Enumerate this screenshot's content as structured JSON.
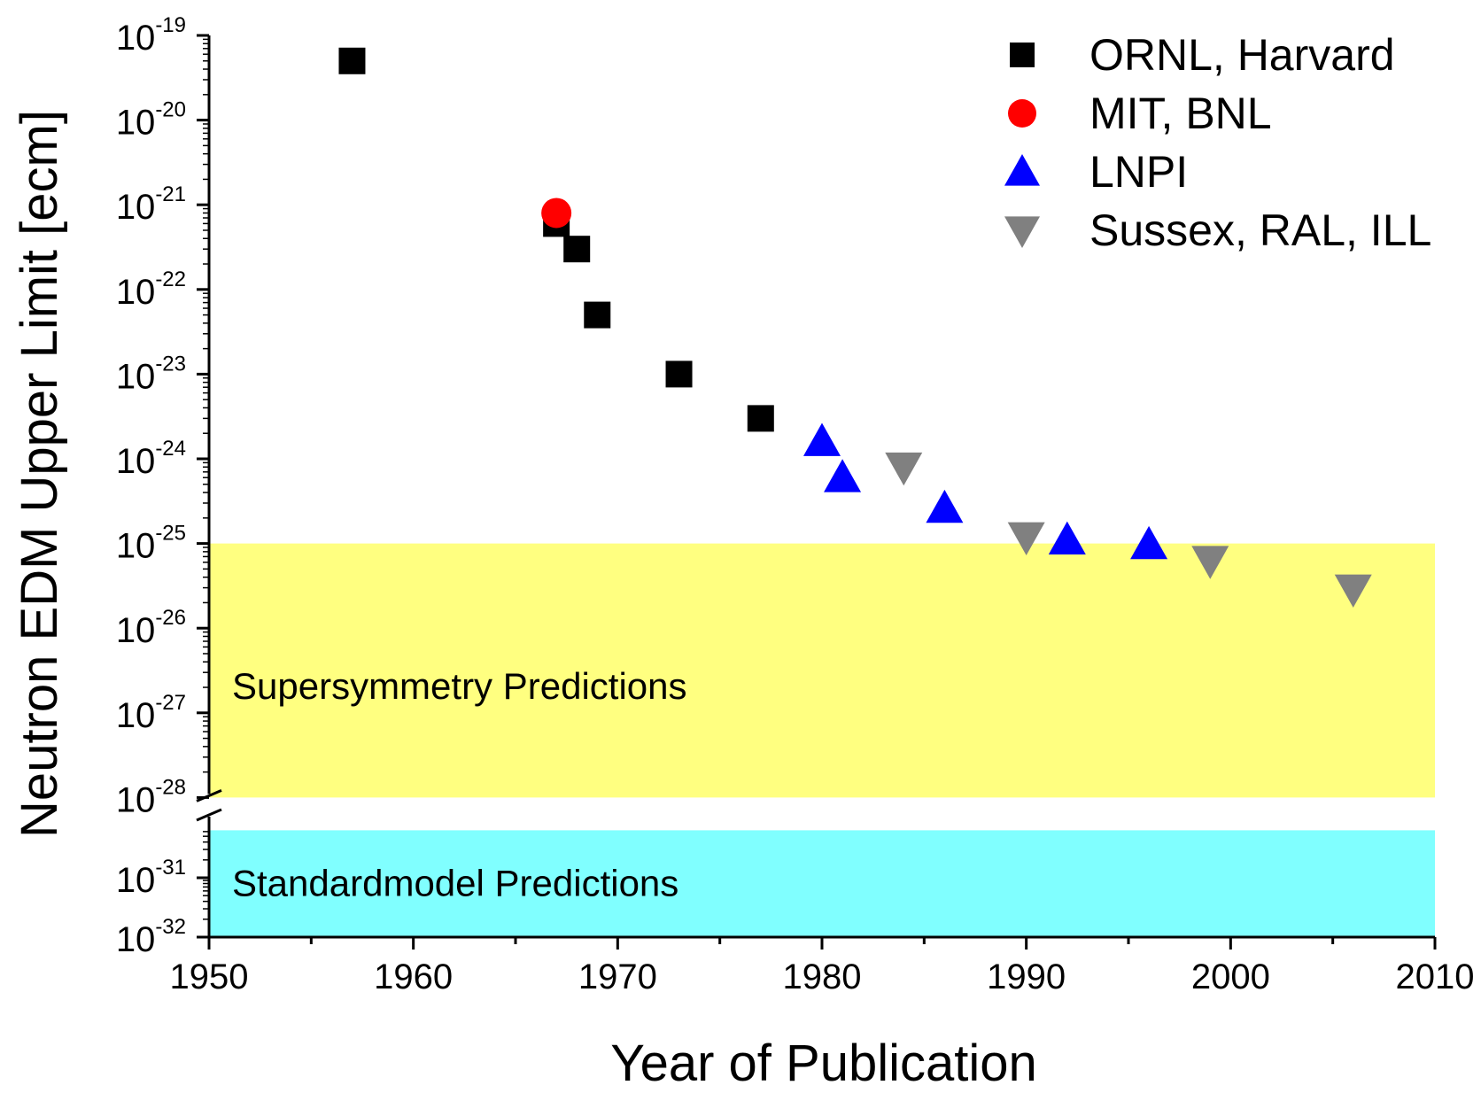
{
  "chart_data": {
    "type": "scatter",
    "title": "",
    "xlabel": "Year of Publication",
    "ylabel": "Neutron EDM Upper Limit [ecm]",
    "x_ticks": [
      1950,
      1960,
      1970,
      1980,
      1990,
      2000,
      2010
    ],
    "xlim": [
      1950,
      2010
    ],
    "y_scale": "log",
    "y_axis_broken": true,
    "y_break_between": [
      -31,
      -28
    ],
    "y_upper_segment": [
      -28,
      -19
    ],
    "y_lower_segment": [
      -32,
      -30.2
    ],
    "y_ticks_upper": [
      {
        "base": "10",
        "exp": "-19"
      },
      {
        "base": "10",
        "exp": "-20"
      },
      {
        "base": "10",
        "exp": "-21"
      },
      {
        "base": "10",
        "exp": "-22"
      },
      {
        "base": "10",
        "exp": "-23"
      },
      {
        "base": "10",
        "exp": "-24"
      },
      {
        "base": "10",
        "exp": "-25"
      },
      {
        "base": "10",
        "exp": "-26"
      },
      {
        "base": "10",
        "exp": "-27"
      },
      {
        "base": "10",
        "exp": "-28"
      }
    ],
    "y_ticks_lower": [
      {
        "base": "10",
        "exp": "-31"
      },
      {
        "base": "10",
        "exp": "-32"
      }
    ],
    "bands": [
      {
        "label": "Supersymmetry Predictions",
        "y_from_exp": -28,
        "y_to_exp": -25,
        "color": "#ffff80"
      },
      {
        "label": "Standardmodel Predictions",
        "y_from_exp": -32,
        "y_to_exp": -30.2,
        "color": "#80ffff"
      }
    ],
    "legend_position": "top-right",
    "series": [
      {
        "name": "ORNL, Harvard",
        "marker": "square",
        "color": "#000000",
        "points": [
          {
            "x": 1957,
            "y": 5e-20
          },
          {
            "x": 1967,
            "y": 6e-22
          },
          {
            "x": 1968,
            "y": 3e-22
          },
          {
            "x": 1969,
            "y": 5e-23
          },
          {
            "x": 1973,
            "y": 1e-23
          },
          {
            "x": 1977,
            "y": 3e-24
          }
        ]
      },
      {
        "name": "MIT, BNL",
        "marker": "circle",
        "color": "#ff0000",
        "points": [
          {
            "x": 1967,
            "y": 8e-22
          }
        ]
      },
      {
        "name": "LNPI",
        "marker": "triangle-up",
        "color": "#0000ff",
        "points": [
          {
            "x": 1980,
            "y": 1.6e-24
          },
          {
            "x": 1981,
            "y": 6e-25
          },
          {
            "x": 1986,
            "y": 2.6e-25
          },
          {
            "x": 1992,
            "y": 1.1e-25
          },
          {
            "x": 1996,
            "y": 9.7e-26
          }
        ]
      },
      {
        "name": "Sussex, RAL, ILL",
        "marker": "triangle-down",
        "color": "#808080",
        "points": [
          {
            "x": 1984,
            "y": 8e-25
          },
          {
            "x": 1990,
            "y": 1.2e-25
          },
          {
            "x": 1999,
            "y": 6.3e-26
          },
          {
            "x": 2006,
            "y": 2.9e-26
          }
        ]
      }
    ]
  }
}
